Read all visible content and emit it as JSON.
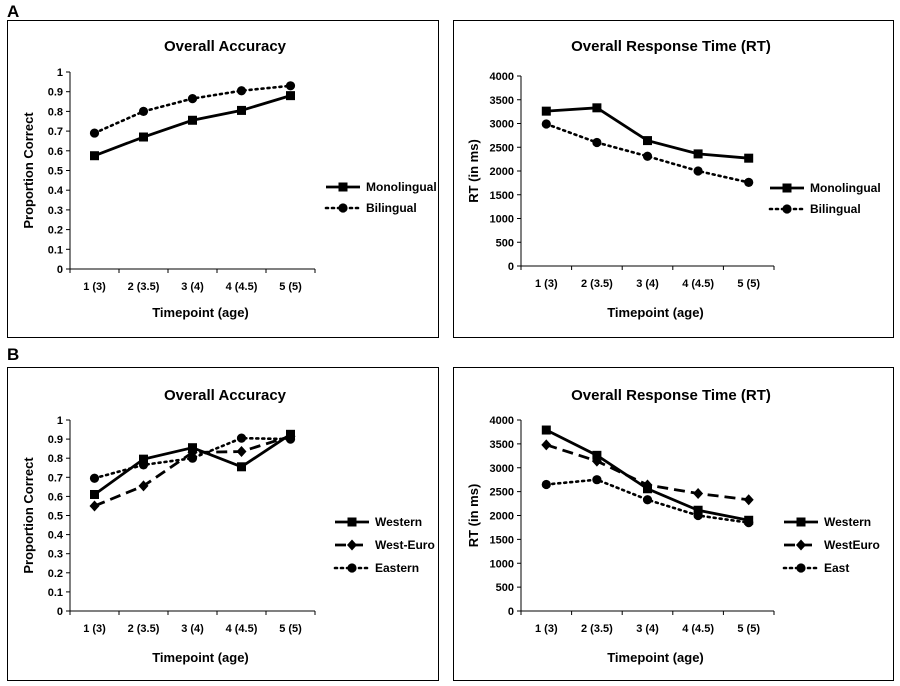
{
  "panel_labels": [
    "A",
    "B"
  ],
  "chart_data": [
    {
      "type": "line",
      "title": "Overall Accuracy",
      "xlabel": "Timepoint (age)",
      "ylabel": "Proportion Correct",
      "categories": [
        "1 (3)",
        "2 (3.5)",
        "3 (4)",
        "4 (4.5)",
        "5 (5)"
      ],
      "ylim": [
        0,
        1
      ],
      "yticks": [
        "0",
        "0.1",
        "0.2",
        "0.3",
        "0.4",
        "0.5",
        "0.6",
        "0.7",
        "0.8",
        "0.9",
        "1"
      ],
      "legend_position": "right",
      "series": [
        {
          "name": "Monolingual",
          "values": [
            0.575,
            0.67,
            0.755,
            0.805,
            0.88
          ],
          "line": "solid",
          "marker": "square"
        },
        {
          "name": "Bilingual",
          "values": [
            0.69,
            0.8,
            0.865,
            0.905,
            0.93
          ],
          "line": "dotted",
          "marker": "circle"
        }
      ]
    },
    {
      "type": "line",
      "title": "Overall Response Time (RT)",
      "xlabel": "Timepoint (age)",
      "ylabel": "RT (in ms)",
      "categories": [
        "1 (3)",
        "2 (3.5)",
        "3 (4)",
        "4 (4.5)",
        "5 (5)"
      ],
      "ylim": [
        0,
        4000
      ],
      "yticks": [
        "0",
        "500",
        "1000",
        "1500",
        "2000",
        "2500",
        "3000",
        "3500",
        "4000"
      ],
      "legend_position": "right",
      "series": [
        {
          "name": "Monolingual",
          "values": [
            3260,
            3330,
            2640,
            2360,
            2270
          ],
          "line": "solid",
          "marker": "square"
        },
        {
          "name": "Bilingual",
          "values": [
            2990,
            2600,
            2310,
            2000,
            1760
          ],
          "line": "dotted",
          "marker": "circle"
        }
      ]
    },
    {
      "type": "line",
      "title": "Overall Accuracy",
      "xlabel": "Timepoint (age)",
      "ylabel": "Proportion Correct",
      "categories": [
        "1 (3)",
        "2 (3.5)",
        "3 (4)",
        "4 (4.5)",
        "5 (5)"
      ],
      "ylim": [
        0,
        1
      ],
      "yticks": [
        "0",
        "0.1",
        "0.2",
        "0.3",
        "0.4",
        "0.5",
        "0.6",
        "0.7",
        "0.8",
        "0.9",
        "1"
      ],
      "legend_position": "right",
      "series": [
        {
          "name": "Western",
          "values": [
            0.61,
            0.795,
            0.855,
            0.755,
            0.925
          ],
          "line": "solid",
          "marker": "square"
        },
        {
          "name": "West-Euro",
          "values": [
            0.55,
            0.655,
            0.83,
            0.835,
            0.915
          ],
          "line": "dashed",
          "marker": "diamond"
        },
        {
          "name": "Eastern",
          "values": [
            0.695,
            0.765,
            0.8,
            0.905,
            0.9
          ],
          "line": "dotted",
          "marker": "circle"
        }
      ]
    },
    {
      "type": "line",
      "title": "Overall Response Time (RT)",
      "xlabel": "Timepoint (age)",
      "ylabel": "RT (in ms)",
      "categories": [
        "1 (3)",
        "2 (3.5)",
        "3 (4)",
        "4 (4.5)",
        "5 (5)"
      ],
      "ylim": [
        0,
        4000
      ],
      "yticks": [
        "0",
        "500",
        "1000",
        "1500",
        "2000",
        "2500",
        "3000",
        "3500",
        "4000"
      ],
      "legend_position": "right",
      "series": [
        {
          "name": "Western",
          "values": [
            3790,
            3260,
            2560,
            2110,
            1900
          ],
          "line": "solid",
          "marker": "square"
        },
        {
          "name": "WestEuro",
          "values": [
            3480,
            3140,
            2640,
            2460,
            2330
          ],
          "line": "dashed",
          "marker": "diamond"
        },
        {
          "name": "East",
          "values": [
            2650,
            2750,
            2330,
            2000,
            1850
          ],
          "line": "dotted",
          "marker": "circle"
        }
      ]
    }
  ]
}
